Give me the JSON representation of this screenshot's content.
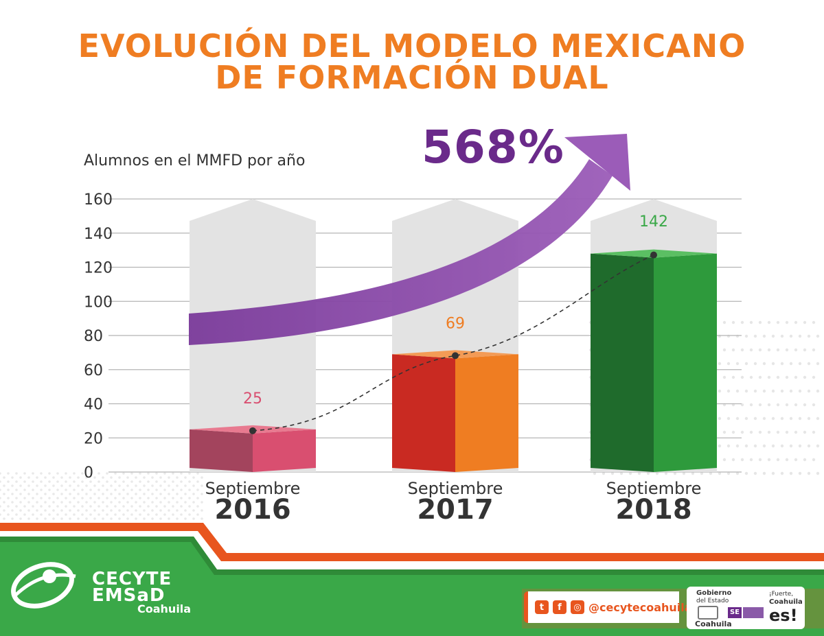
{
  "title_line1": "EVOLUCIÓN DEL MODELO MEXICANO",
  "title_line2": "DE FORMACIÓN DUAL",
  "y_axis_caption": "Alumnos en el MMFD por año",
  "growth_label": "568%",
  "chart_data": {
    "type": "bar",
    "categories": [
      "Septiembre 2016",
      "Septiembre 2017",
      "Septiembre 2018"
    ],
    "category_month": [
      "Septiembre",
      "Septiembre",
      "Septiembre"
    ],
    "category_year": [
      "2016",
      "2017",
      "2018"
    ],
    "values": [
      25,
      69,
      142
    ],
    "value_labels": [
      "25",
      "69",
      "142"
    ],
    "ylim": [
      0,
      160
    ],
    "yticks": [
      "0",
      "20",
      "40",
      "60",
      "80",
      "100",
      "120",
      "140",
      "160"
    ],
    "grid": true,
    "bar_colors": [
      "#d94f70",
      "#ef7d22",
      "#2e9a3c"
    ],
    "value_label_colors": [
      "#d94f70",
      "#ef7d22",
      "#3aa848"
    ],
    "trend_line": "dashed"
  },
  "footer": {
    "brand_line1": "CECYTE",
    "brand_line2": "EMSaD",
    "brand_sub": "Coahuila",
    "social_handle": "@cecytecoahuila",
    "gov_line1": "Gobierno",
    "gov_line2": "del Estado",
    "gov_state": "Coahuila",
    "se_label": "SE",
    "slogan_small": "¡Fuerte,",
    "slogan_mid": "Coahuila",
    "slogan_big": "es!"
  },
  "colors": {
    "title": "#ef7d22",
    "growth": "#6a2a8a",
    "footer_green": "#3aa848",
    "footer_orange": "#e8551e"
  }
}
